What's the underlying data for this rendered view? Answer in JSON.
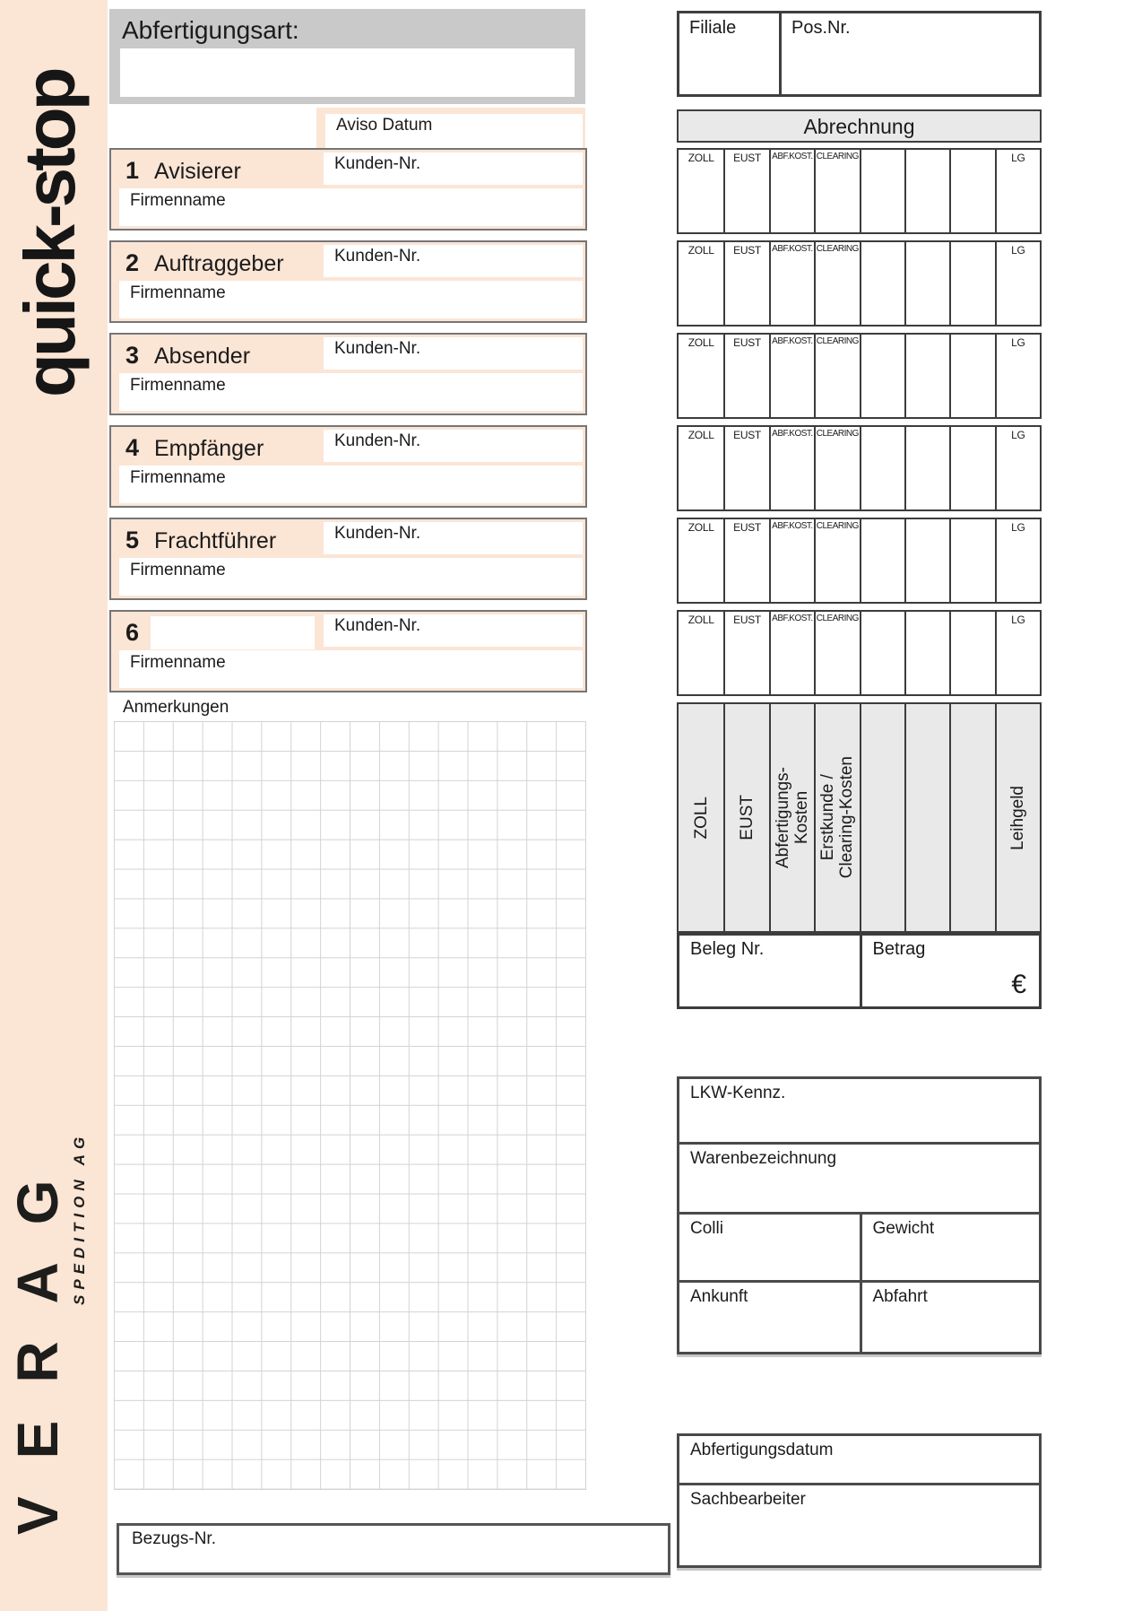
{
  "brand": {
    "logo_text": "quick-stop",
    "company_name": "VERAG",
    "company_subtitle": "SPEDITION AG"
  },
  "top": {
    "abfertigungsart_label": "Abfertigungsart:",
    "filiale_label": "Filiale",
    "pos_nr_label": "Pos.Nr.",
    "aviso_datum_label": "Aviso Datum"
  },
  "abrechnung": {
    "title": "Abrechnung",
    "column_headers": [
      "ZOLL",
      "EUST",
      "ABF.KOST.",
      "CLEARING",
      "",
      "",
      "",
      "LG"
    ],
    "vertical_labels": [
      "ZOLL",
      "EUST",
      "Abfertigungs-\nKosten",
      "Erstkunde /\nClearing-Kosten",
      "",
      "",
      "",
      "Leihgeld"
    ],
    "beleg_nr_label": "Beleg Nr.",
    "betrag_label": "Betrag",
    "currency_symbol": "€"
  },
  "parties": [
    {
      "number": "1",
      "title": "Avisierer",
      "kunden_nr_label": "Kunden-Nr.",
      "firmenname_label": "Firmenname"
    },
    {
      "number": "2",
      "title": "Auftraggeber",
      "kunden_nr_label": "Kunden-Nr.",
      "firmenname_label": "Firmenname"
    },
    {
      "number": "3",
      "title": "Absender",
      "kunden_nr_label": "Kunden-Nr.",
      "firmenname_label": "Firmenname"
    },
    {
      "number": "4",
      "title": "Empfänger",
      "kunden_nr_label": "Kunden-Nr.",
      "firmenname_label": "Firmenname"
    },
    {
      "number": "5",
      "title": "Frachtführer",
      "kunden_nr_label": "Kunden-Nr.",
      "firmenname_label": "Firmenname"
    },
    {
      "number": "6",
      "title": "",
      "kunden_nr_label": "Kunden-Nr.",
      "firmenname_label": "Firmenname"
    }
  ],
  "anmerkungen": {
    "label": "Anmerkungen"
  },
  "shipment": {
    "lkw_kennz_label": "LKW-Kennz.",
    "warenbezeichnung_label": "Warenbezeichnung",
    "colli_label": "Colli",
    "gewicht_label": "Gewicht",
    "ankunft_label": "Ankunft",
    "abfahrt_label": "Abfahrt"
  },
  "processing": {
    "abfertigungsdatum_label": "Abfertigungsdatum",
    "sachbearbeiter_label": "Sachbearbeiter"
  },
  "footer": {
    "bezugs_nr_label": "Bezugs-Nr."
  },
  "colors": {
    "peach": "#fbe5d5",
    "header_gray": "#c9c9c9",
    "table_header_gray": "#e9e9e9",
    "border_dark": "#3c3c3c",
    "border_medium": "#757575"
  }
}
